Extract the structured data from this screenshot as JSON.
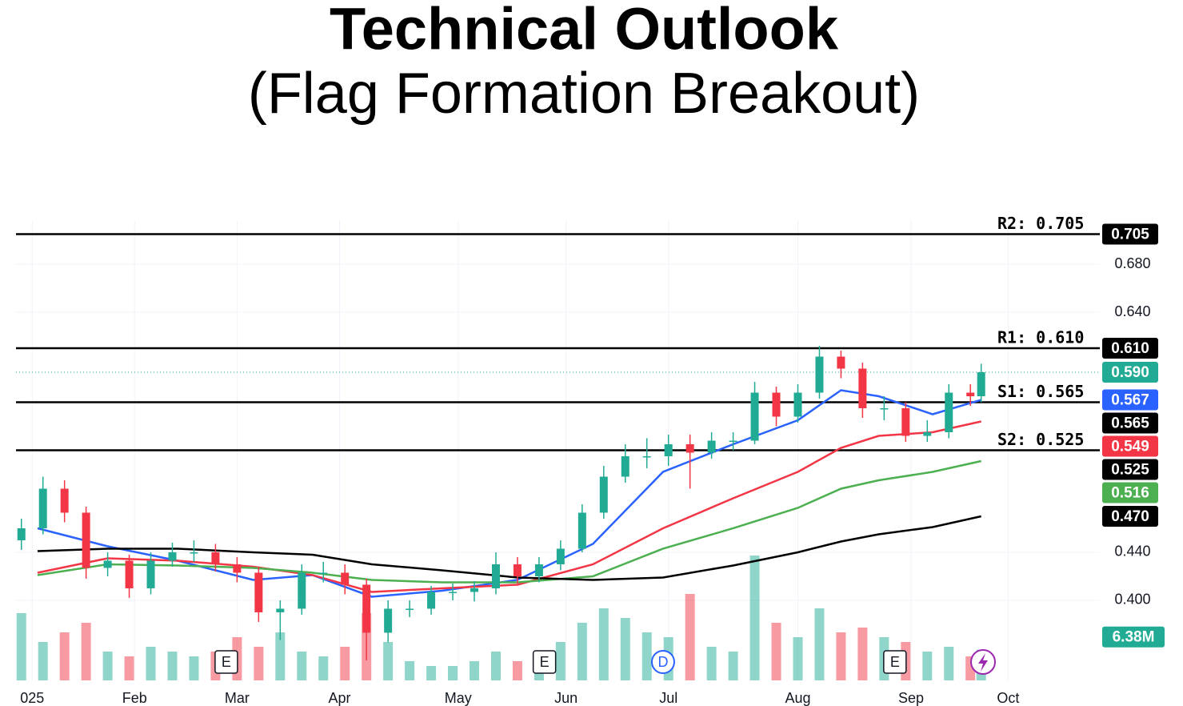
{
  "chart_data": {
    "type": "candlestick",
    "title": "Technical Outlook",
    "subtitle": "(Flag Formation Breakout)",
    "xlim": [
      -1,
      200
    ],
    "xticks": [
      {
        "value": 2,
        "label": "025"
      },
      {
        "value": 21,
        "label": "Feb"
      },
      {
        "value": 40,
        "label": "Mar"
      },
      {
        "value": 59,
        "label": "Apr"
      },
      {
        "value": 81,
        "label": "May"
      },
      {
        "value": 101,
        "label": "Jun"
      },
      {
        "value": 120,
        "label": "Jul"
      },
      {
        "value": 144,
        "label": "Aug"
      },
      {
        "value": 165,
        "label": "Sep"
      },
      {
        "value": 183,
        "label": "Oct"
      }
    ],
    "ylim": [
      0.3333,
      0.7167
    ],
    "yticks": [
      {
        "value": 0.68,
        "label": "0.680"
      },
      {
        "value": 0.64,
        "label": "0.640"
      },
      {
        "value": 0.44,
        "label": "0.440"
      },
      {
        "value": 0.4,
        "label": "0.400"
      }
    ],
    "grid": true,
    "up_color": "#22ab94",
    "down_color": "#f23645",
    "x": [
      0,
      4,
      8,
      12,
      16,
      20,
      24,
      28,
      32,
      36,
      40,
      44,
      48,
      52,
      56,
      60,
      64,
      68,
      72,
      76,
      80,
      84,
      88,
      92,
      96,
      100,
      104,
      108,
      112,
      116,
      120,
      124,
      128,
      132,
      136,
      140,
      144,
      148,
      152,
      156,
      160,
      164,
      168,
      172,
      176,
      178
    ],
    "open": [
      0.45,
      0.46,
      0.493,
      0.473,
      0.427,
      0.433,
      0.41,
      0.433,
      0.44,
      0.44,
      0.43,
      0.423,
      0.39,
      0.393,
      0.423,
      0.423,
      0.413,
      0.373,
      0.393,
      0.393,
      0.407,
      0.407,
      0.41,
      0.43,
      0.42,
      0.43,
      0.443,
      0.473,
      0.503,
      0.52,
      0.52,
      0.53,
      0.523,
      0.533,
      0.533,
      0.573,
      0.553,
      0.573,
      0.603,
      0.593,
      0.56,
      0.56,
      0.537,
      0.54,
      0.573,
      0.57
    ],
    "high": [
      0.468,
      0.503,
      0.5,
      0.478,
      0.44,
      0.438,
      0.44,
      0.448,
      0.45,
      0.447,
      0.436,
      0.428,
      0.4,
      0.43,
      0.432,
      0.43,
      0.418,
      0.4,
      0.4,
      0.412,
      0.414,
      0.416,
      0.44,
      0.436,
      0.436,
      0.45,
      0.48,
      0.512,
      0.53,
      0.535,
      0.538,
      0.538,
      0.54,
      0.54,
      0.582,
      0.578,
      0.58,
      0.612,
      0.608,
      0.598,
      0.57,
      0.565,
      0.55,
      0.58,
      0.58,
      0.597
    ],
    "low": [
      0.442,
      0.455,
      0.465,
      0.418,
      0.42,
      0.402,
      0.405,
      0.428,
      0.432,
      0.424,
      0.415,
      0.382,
      0.367,
      0.388,
      0.415,
      0.405,
      0.35,
      0.365,
      0.386,
      0.388,
      0.4,
      0.399,
      0.405,
      0.414,
      0.415,
      0.425,
      0.44,
      0.468,
      0.498,
      0.51,
      0.512,
      0.493,
      0.518,
      0.525,
      0.53,
      0.545,
      0.548,
      0.568,
      0.585,
      0.552,
      0.55,
      0.532,
      0.532,
      0.535,
      0.562,
      0.565
    ],
    "close": [
      0.46,
      0.493,
      0.473,
      0.427,
      0.433,
      0.41,
      0.433,
      0.44,
      0.44,
      0.43,
      0.423,
      0.39,
      0.393,
      0.423,
      0.423,
      0.413,
      0.373,
      0.393,
      0.393,
      0.407,
      0.407,
      0.41,
      0.43,
      0.42,
      0.43,
      0.443,
      0.473,
      0.503,
      0.52,
      0.52,
      0.53,
      0.523,
      0.533,
      0.533,
      0.573,
      0.553,
      0.573,
      0.603,
      0.593,
      0.56,
      0.56,
      0.537,
      0.54,
      0.573,
      0.57,
      0.59
    ],
    "last_label": "0.590",
    "volume": [
      14,
      8,
      10,
      12,
      6,
      5,
      7,
      6,
      5,
      6,
      9,
      7,
      10,
      6,
      5,
      7,
      14,
      8,
      4,
      3,
      3,
      4,
      6,
      4,
      5,
      8,
      12,
      15,
      13,
      10,
      9,
      18,
      7,
      6,
      26,
      12,
      9,
      15,
      10,
      11,
      9,
      8,
      6,
      7,
      5,
      6.38
    ],
    "volume_max": 40,
    "volume_label": "6.38M",
    "series": [
      {
        "name": "MA blue",
        "color": "#2962ff",
        "last_label": "0.567",
        "last": 0.567,
        "x": [
          3,
          16,
          29,
          43,
          54,
          65,
          78,
          92,
          106,
          119,
          132,
          144,
          152,
          159,
          169,
          178
        ],
        "values": [
          0.46,
          0.445,
          0.433,
          0.417,
          0.421,
          0.403,
          0.408,
          0.417,
          0.447,
          0.507,
          0.53,
          0.55,
          0.575,
          0.57,
          0.555,
          0.567
        ]
      },
      {
        "name": "MA red",
        "color": "#f23645",
        "last_label": "0.549",
        "last": 0.549,
        "x": [
          3,
          16,
          29,
          43,
          54,
          65,
          78,
          92,
          106,
          119,
          132,
          144,
          152,
          159,
          169,
          178
        ],
        "values": [
          0.423,
          0.435,
          0.433,
          0.428,
          0.421,
          0.407,
          0.41,
          0.413,
          0.43,
          0.46,
          0.485,
          0.507,
          0.527,
          0.537,
          0.54,
          0.549
        ]
      },
      {
        "name": "MA green",
        "color": "#4caf50",
        "last_label": "0.516",
        "last": 0.516,
        "x": [
          3,
          16,
          29,
          43,
          54,
          65,
          78,
          92,
          106,
          119,
          132,
          144,
          152,
          159,
          169,
          178
        ],
        "values": [
          0.421,
          0.43,
          0.429,
          0.427,
          0.423,
          0.417,
          0.415,
          0.415,
          0.42,
          0.443,
          0.46,
          0.477,
          0.493,
          0.5,
          0.507,
          0.516
        ]
      },
      {
        "name": "MA black",
        "color": "#000000",
        "last_label": "0.470",
        "last": 0.47,
        "x": [
          3,
          16,
          29,
          43,
          54,
          65,
          78,
          92,
          106,
          119,
          132,
          144,
          152,
          159,
          169,
          178
        ],
        "values": [
          0.441,
          0.443,
          0.443,
          0.44,
          0.438,
          0.43,
          0.425,
          0.419,
          0.417,
          0.419,
          0.429,
          0.44,
          0.449,
          0.455,
          0.461,
          0.47
        ]
      }
    ],
    "levels": [
      {
        "label": "R2: 0.705",
        "value": 0.705,
        "value_label": "0.705"
      },
      {
        "label": "R1: 0.610",
        "value": 0.61,
        "value_label": "0.610"
      },
      {
        "label": "S1: 0.565",
        "value": 0.565,
        "value_label": "0.565"
      },
      {
        "label": "S2: 0.525",
        "value": 0.525,
        "value_label": "0.525"
      }
    ],
    "events": [
      {
        "x": 38,
        "label": "E"
      },
      {
        "x": 97,
        "label": "E"
      },
      {
        "x": 119,
        "label": "D"
      },
      {
        "x": 162,
        "label": "E"
      }
    ]
  }
}
